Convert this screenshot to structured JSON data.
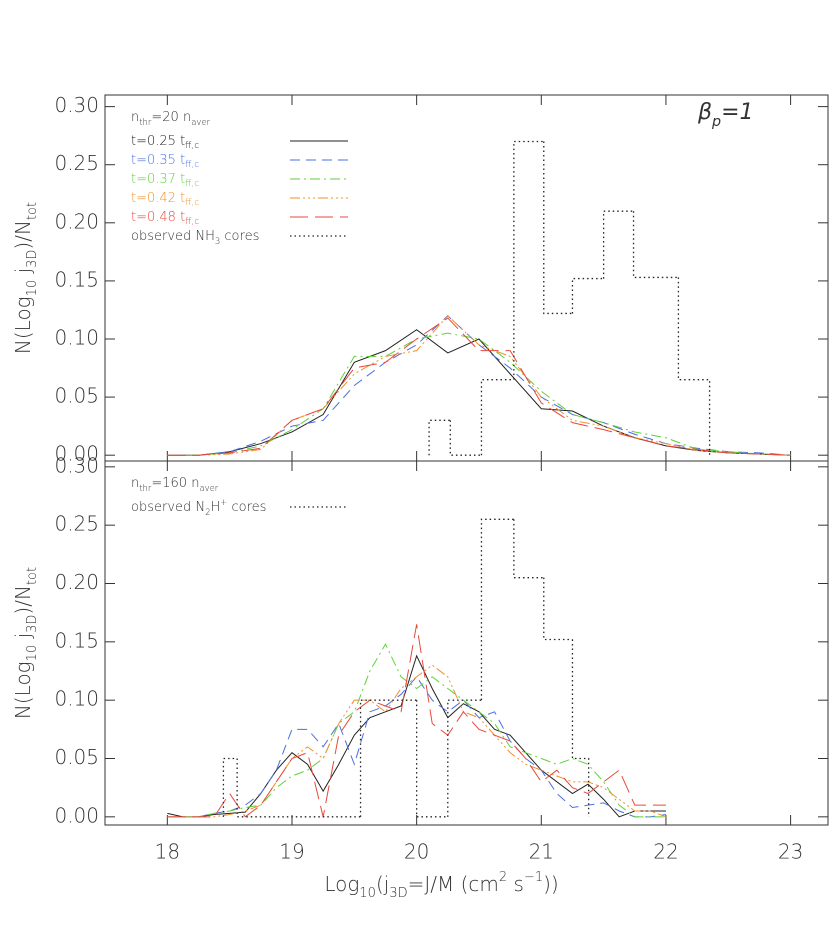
{
  "chart_data": [
    {
      "type": "line",
      "annotation": {
        "parts": [
          "n",
          "thr",
          "=20 n",
          "aver"
        ],
        "shift": [
          0,
          -1,
          0,
          -1
        ]
      },
      "label": {
        "parts": [
          "β",
          "p",
          "=1"
        ],
        "shift": [
          0,
          -1,
          0
        ]
      },
      "y_label": {
        "parts": [
          "N(Log",
          "10",
          " j",
          "3D",
          ")/N",
          "tot"
        ],
        "shift": [
          0,
          -1,
          0,
          -1,
          0,
          -1
        ]
      },
      "xlim": [
        17.5,
        23.3
      ],
      "xticks": [
        18,
        19,
        20,
        21,
        22,
        23
      ],
      "ylim": [
        -0.005,
        0.31
      ],
      "yticks": [
        {
          "value": 0,
          "label": "0.00"
        },
        {
          "value": 0.05,
          "label": "0.05"
        },
        {
          "value": 0.1,
          "label": "0.10"
        },
        {
          "value": 0.15,
          "label": "0.15"
        },
        {
          "value": 0.2,
          "label": "0.20"
        },
        {
          "value": 0.25,
          "label": "0.25"
        },
        {
          "value": 0.3,
          "label": "0.30"
        }
      ],
      "x": [
        18,
        18.25,
        18.5,
        18.75,
        19,
        19.25,
        19.5,
        19.75,
        20,
        20.25,
        20.5,
        20.75,
        21,
        21.25,
        21.5,
        21.75,
        22,
        22.25,
        22.5,
        22.75,
        23
      ],
      "series": [
        {
          "name": "t=0.25 t",
          "name_sub": "ff,c",
          "color": "#222222",
          "dash": "none",
          "values": [
            0,
            0,
            0.003,
            0.01,
            0.02,
            0.035,
            0.08,
            0.09,
            0.108,
            0.088,
            0.1,
            0.07,
            0.04,
            0.038,
            0.025,
            0.015,
            0.008,
            0.004,
            0.002,
            0.001,
            0
          ]
        },
        {
          "name": "t=0.35 t",
          "name_sub": "ff,c",
          "color": "#4a6fe3",
          "dash": "10,6",
          "values": [
            0,
            0,
            0.003,
            0.012,
            0.025,
            0.03,
            0.06,
            0.08,
            0.095,
            0.12,
            0.095,
            0.075,
            0.05,
            0.035,
            0.028,
            0.018,
            0.01,
            0.006,
            0.003,
            0.002,
            0
          ]
        },
        {
          "name": "t=0.37 t",
          "name_sub": "ff,c",
          "color": "#5fd13a",
          "dash": "10,4,2,4",
          "values": [
            0,
            0,
            0.002,
            0.008,
            0.022,
            0.04,
            0.085,
            0.085,
            0.1,
            0.105,
            0.1,
            0.08,
            0.055,
            0.035,
            0.028,
            0.02,
            0.015,
            0.005,
            0.003,
            0.001,
            0
          ]
        },
        {
          "name": "t=0.42 t",
          "name_sub": "ff,c",
          "color": "#f0902a",
          "dash": "10,3,2,3,2,3,2,3",
          "values": [
            0,
            0,
            0.001,
            0.005,
            0.03,
            0.04,
            0.07,
            0.085,
            0.09,
            0.12,
            0.095,
            0.085,
            0.05,
            0.03,
            0.025,
            0.015,
            0.01,
            0.004,
            0.002,
            0.001,
            0
          ]
        },
        {
          "name": "t=0.48 t",
          "name_sub": "ff,c",
          "color": "#e8483a",
          "dash": "18,7",
          "values": [
            0,
            0,
            0.002,
            0.006,
            0.03,
            0.04,
            0.075,
            0.08,
            0.1,
            0.118,
            0.09,
            0.09,
            0.045,
            0.028,
            0.022,
            0.015,
            0.008,
            0.005,
            0.002,
            0.001,
            0
          ]
        }
      ],
      "histogram": {
        "name": {
          "parts": [
            "observed NH",
            "3",
            " cores"
          ],
          "shift": [
            0,
            -1,
            0
          ]
        },
        "color": "#222222",
        "bins": [
          20.1,
          20.27,
          20.52,
          20.78,
          21.02,
          21.25,
          21.5,
          21.74,
          22.1,
          22.35
        ],
        "values": [
          0.03,
          0,
          0.065,
          0.27,
          0.122,
          0.152,
          0.21,
          0.153,
          0.065
        ]
      }
    },
    {
      "type": "line",
      "annotation": {
        "parts": [
          "n",
          "thr",
          "=160 n",
          "aver"
        ],
        "shift": [
          0,
          -1,
          0,
          -1
        ]
      },
      "y_label": {
        "parts": [
          "N(Log",
          "10",
          " j",
          "3D",
          ")/N",
          "tot"
        ],
        "shift": [
          0,
          -1,
          0,
          -1,
          0,
          -1
        ]
      },
      "x_label": {
        "parts": [
          "Log",
          "10",
          "(j",
          "3D",
          "=J/M (cm",
          "2",
          " s",
          "−1",
          "))"
        ],
        "shift": [
          0,
          -1,
          0,
          -1,
          0,
          1,
          0,
          1,
          0
        ]
      },
      "xlim": [
        17.5,
        23.3
      ],
      "xticks": [
        18,
        19,
        20,
        21,
        22,
        23
      ],
      "ylim": [
        -0.007,
        0.305
      ],
      "yticks": [
        {
          "value": 0,
          "label": "0.00"
        },
        {
          "value": 0.05,
          "label": "0.05"
        },
        {
          "value": 0.1,
          "label": "0.10"
        },
        {
          "value": 0.15,
          "label": "0.15"
        },
        {
          "value": 0.2,
          "label": "0.20"
        },
        {
          "value": 0.25,
          "label": "0.25"
        },
        {
          "value": 0.3,
          "label": "0.30"
        }
      ],
      "x": [
        18,
        18.125,
        18.25,
        18.375,
        18.5,
        18.625,
        18.75,
        18.875,
        19,
        19.125,
        19.25,
        19.375,
        19.5,
        19.625,
        19.75,
        19.875,
        20,
        20.125,
        20.25,
        20.375,
        20.5,
        20.625,
        20.75,
        20.875,
        21,
        21.125,
        21.25,
        21.375,
        21.5,
        21.625,
        21.75,
        21.875,
        22
      ],
      "series": [
        {
          "color": "#222222",
          "dash": "none",
          "values": [
            0.003,
            0,
            0,
            0.002,
            0.003,
            0.004,
            0.02,
            0.04,
            0.055,
            0.045,
            0.022,
            0.045,
            0.07,
            0.085,
            0.09,
            0.095,
            0.138,
            0.11,
            0.085,
            0.097,
            0.09,
            0.075,
            0.07,
            0.055,
            0.04,
            0.03,
            0.02,
            0.028,
            0.015,
            0,
            0.005,
            0.005,
            0.005
          ]
        },
        {
          "color": "#4a6fe3",
          "dash": "10,6",
          "values": [
            0,
            0,
            0,
            0.003,
            0.005,
            0.01,
            0.02,
            0.04,
            0.075,
            0.075,
            0.06,
            0.08,
            0.045,
            0.09,
            0.095,
            0.105,
            0.12,
            0.1,
            0.09,
            0.1,
            0.085,
            0.09,
            0.065,
            0.05,
            0.04,
            0.02,
            0.008,
            0.01,
            0.012,
            0.005,
            0,
            0,
            0.002
          ]
        },
        {
          "color": "#5fd13a",
          "dash": "10,4,2,4",
          "values": [
            0,
            0,
            0,
            0.003,
            0.005,
            0.008,
            0.01,
            0.025,
            0.035,
            0.04,
            0.05,
            0.08,
            0.09,
            0.125,
            0.148,
            0.12,
            0.11,
            0.12,
            0.11,
            0.1,
            0.09,
            0.08,
            0.06,
            0.055,
            0.05,
            0.045,
            0.05,
            0.045,
            0.03,
            0.01,
            0,
            0,
            0
          ]
        },
        {
          "color": "#f0902a",
          "dash": "10,3,2,3,2,3,2,3",
          "values": [
            0,
            0,
            0,
            0,
            0.002,
            0.005,
            0.01,
            0.03,
            0.05,
            0.06,
            0.05,
            0.08,
            0.1,
            0.1,
            0.09,
            0.11,
            0.12,
            0.13,
            0.12,
            0.09,
            0.085,
            0.07,
            0.055,
            0.045,
            0.04,
            0.035,
            0.03,
            0.03,
            0.025,
            0.015,
            0.005,
            0.005,
            0
          ]
        },
        {
          "color": "#e8483a",
          "dash": "18,7",
          "values": [
            0,
            0,
            0,
            0,
            0.02,
            0,
            0.01,
            0.03,
            0.05,
            0.055,
            0,
            0.07,
            0.09,
            0.1,
            0.095,
            0.09,
            0.165,
            0.08,
            0.07,
            0.09,
            0.075,
            0.07,
            0.065,
            0.05,
            0.03,
            0.04,
            0.025,
            0.02,
            0.03,
            0.04,
            0.01,
            0.01,
            0.01
          ]
        }
      ],
      "histogram": {
        "name": {
          "parts": [
            "observed N",
            "2",
            "H",
            "+",
            " cores"
          ],
          "shift": [
            0,
            -1,
            0,
            1,
            0
          ]
        },
        "color": "#222222",
        "bins": [
          18.45,
          18.56,
          19.55,
          20.0,
          20.25,
          20.52,
          20.78,
          21.02,
          21.25,
          21.38
        ],
        "values": [
          0.05,
          0,
          0.1,
          0,
          0.1,
          0.255,
          0.205,
          0.152,
          0.05
        ]
      }
    }
  ]
}
